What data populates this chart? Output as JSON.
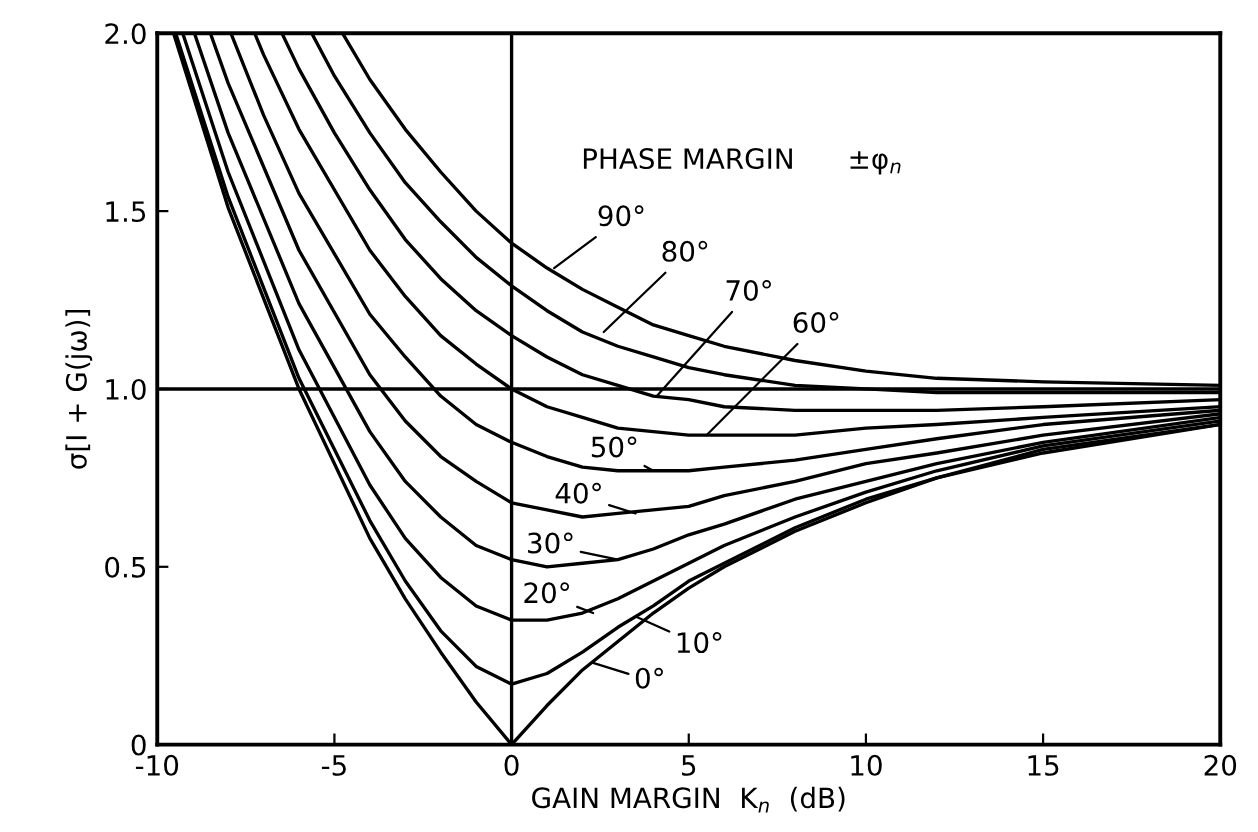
{
  "chart_data": {
    "type": "line",
    "xlabel": "GAIN MARGIN  K$_{n}$  (dB)",
    "ylabel": "σ[I + G(jω)]",
    "xlim": [
      -10,
      20
    ],
    "ylim": [
      0,
      2
    ],
    "xticks": [
      -10,
      -5,
      0,
      5,
      10,
      15,
      20
    ],
    "yticks": [
      0,
      0.5,
      {
        "value": 1,
        "label": "1.0"
      },
      1.5,
      {
        "value": 2,
        "label": "2.0"
      }
    ],
    "grid": false,
    "legend": false,
    "marker": "none",
    "line_style": "solid",
    "ref_lines": [
      {
        "axis": "y",
        "value": 1,
        "color": "#000000"
      },
      {
        "axis": "x",
        "value": 0,
        "color": "#000000"
      }
    ],
    "series": [
      {
        "color": "#000000",
        "x": [
          -9.54,
          -8,
          -6,
          -4,
          -3,
          -2,
          -1,
          0,
          1,
          2,
          3,
          4,
          5,
          6,
          8,
          10,
          12,
          15,
          20
        ],
        "values": [
          2.0,
          1.51,
          1.0,
          0.58,
          0.41,
          0.26,
          0.12,
          0,
          0.11,
          0.21,
          0.29,
          0.37,
          0.44,
          0.5,
          0.6,
          0.68,
          0.75,
          0.82,
          0.9
        ]
      },
      {
        "color": "#000000",
        "x": [
          -9.48,
          -8,
          -6,
          -4,
          -3,
          -2,
          -1,
          0,
          1,
          2,
          3,
          4,
          5,
          6,
          8,
          10,
          12,
          15,
          20
        ],
        "values": [
          2.0,
          1.54,
          1.03,
          0.63,
          0.46,
          0.32,
          0.22,
          0.17,
          0.2,
          0.26,
          0.33,
          0.39,
          0.46,
          0.51,
          0.61,
          0.69,
          0.75,
          0.83,
          0.9
        ]
      },
      {
        "color": "#000000",
        "x": [
          -9.28,
          -8,
          -6,
          -4,
          -3,
          -2,
          -1,
          0,
          1,
          2,
          3,
          4,
          5,
          6,
          8,
          10,
          12,
          15,
          20
        ],
        "values": [
          2.0,
          1.61,
          1.11,
          0.73,
          0.58,
          0.47,
          0.39,
          0.35,
          0.35,
          0.37,
          0.41,
          0.46,
          0.51,
          0.56,
          0.64,
          0.71,
          0.77,
          0.84,
          0.91
        ]
      },
      {
        "color": "#000000",
        "x": [
          -8.95,
          -8,
          -6,
          -4,
          -3,
          -2,
          -1,
          0,
          1,
          2,
          3,
          4,
          5,
          6,
          8,
          10,
          12,
          15,
          20
        ],
        "values": [
          2.0,
          1.72,
          1.24,
          0.88,
          0.74,
          0.64,
          0.56,
          0.52,
          0.5,
          0.51,
          0.52,
          0.55,
          0.59,
          0.62,
          0.69,
          0.74,
          0.79,
          0.85,
          0.92
        ]
      },
      {
        "color": "#000000",
        "x": [
          -8.5,
          -8,
          -6,
          -4,
          -3,
          -2,
          -1,
          0,
          1,
          2,
          3,
          4,
          5,
          6,
          8,
          10,
          12,
          15,
          20
        ],
        "values": [
          2.0,
          1.86,
          1.39,
          1.04,
          0.91,
          0.81,
          0.74,
          0.68,
          0.66,
          0.64,
          0.65,
          0.66,
          0.67,
          0.7,
          0.74,
          0.79,
          0.82,
          0.87,
          0.93
        ]
      },
      {
        "color": "#000000",
        "x": [
          -7.92,
          -7,
          -6,
          -4,
          -3,
          -2,
          -1,
          0,
          1,
          2,
          3,
          4,
          5,
          6,
          8,
          10,
          12,
          15,
          20
        ],
        "values": [
          2.0,
          1.77,
          1.55,
          1.21,
          1.09,
          0.98,
          0.9,
          0.85,
          0.81,
          0.78,
          0.77,
          0.77,
          0.77,
          0.78,
          0.8,
          0.83,
          0.86,
          0.9,
          0.94
        ]
      },
      {
        "color": "#000000",
        "x": [
          -7.25,
          -7,
          -6,
          -4,
          -3,
          -2,
          -1,
          0,
          1,
          2,
          3,
          4,
          5,
          6,
          8,
          10,
          12,
          15,
          20
        ],
        "values": [
          2.0,
          1.94,
          1.73,
          1.39,
          1.26,
          1.15,
          1.07,
          1.0,
          0.95,
          0.92,
          0.89,
          0.88,
          0.87,
          0.87,
          0.87,
          0.89,
          0.9,
          0.92,
          0.95
        ]
      },
      {
        "color": "#000000",
        "x": [
          -6.48,
          -6,
          -5,
          -4,
          -3,
          -2,
          -1,
          0,
          1,
          2,
          3,
          4,
          5,
          6,
          8,
          10,
          12,
          15,
          20
        ],
        "values": [
          2.0,
          1.9,
          1.72,
          1.56,
          1.42,
          1.31,
          1.22,
          1.15,
          1.09,
          1.04,
          1.01,
          0.98,
          0.97,
          0.95,
          0.94,
          0.94,
          0.94,
          0.95,
          0.97
        ]
      },
      {
        "color": "#000000",
        "x": [
          -5.64,
          -5,
          -4,
          -3,
          -2,
          -1,
          0,
          1,
          2,
          3,
          4,
          5,
          6,
          8,
          10,
          12,
          15,
          20
        ],
        "values": [
          2.0,
          1.88,
          1.72,
          1.58,
          1.47,
          1.37,
          1.29,
          1.22,
          1.16,
          1.12,
          1.09,
          1.06,
          1.04,
          1.01,
          1.0,
          0.99,
          0.99,
          0.99
        ]
      },
      {
        "color": "#000000",
        "x": [
          -4.77,
          -4,
          -3,
          -2,
          -1,
          0,
          1,
          2,
          3,
          4,
          5,
          6,
          8,
          10,
          12,
          15,
          20
        ],
        "values": [
          2.0,
          1.87,
          1.73,
          1.61,
          1.5,
          1.41,
          1.34,
          1.28,
          1.23,
          1.18,
          1.15,
          1.12,
          1.08,
          1.05,
          1.03,
          1.02,
          1.01
        ]
      }
    ],
    "annotations": [
      {
        "text": "90°",
        "x": 1.2,
        "y": 1.34
      },
      {
        "text": "80°",
        "x": 2.6,
        "y": 1.16
      },
      {
        "text": "70°",
        "x": 4.1,
        "y": 0.98
      },
      {
        "text": "60°",
        "x": 5.5,
        "y": 0.87
      },
      {
        "text": "50°",
        "x": 4.0,
        "y": 0.77
      },
      {
        "text": "40°",
        "x": 3.5,
        "y": 0.65
      },
      {
        "text": "30°",
        "x": 3.0,
        "y": 0.52
      },
      {
        "text": "20°",
        "x": 2.3,
        "y": 0.37
      },
      {
        "text": "10°",
        "x": 3.5,
        "y": 0.36
      },
      {
        "text": "0°",
        "x": 2.3,
        "y": 0.23
      },
      "PHASE MARGIN      ±φ$_{n}$"
    ]
  }
}
